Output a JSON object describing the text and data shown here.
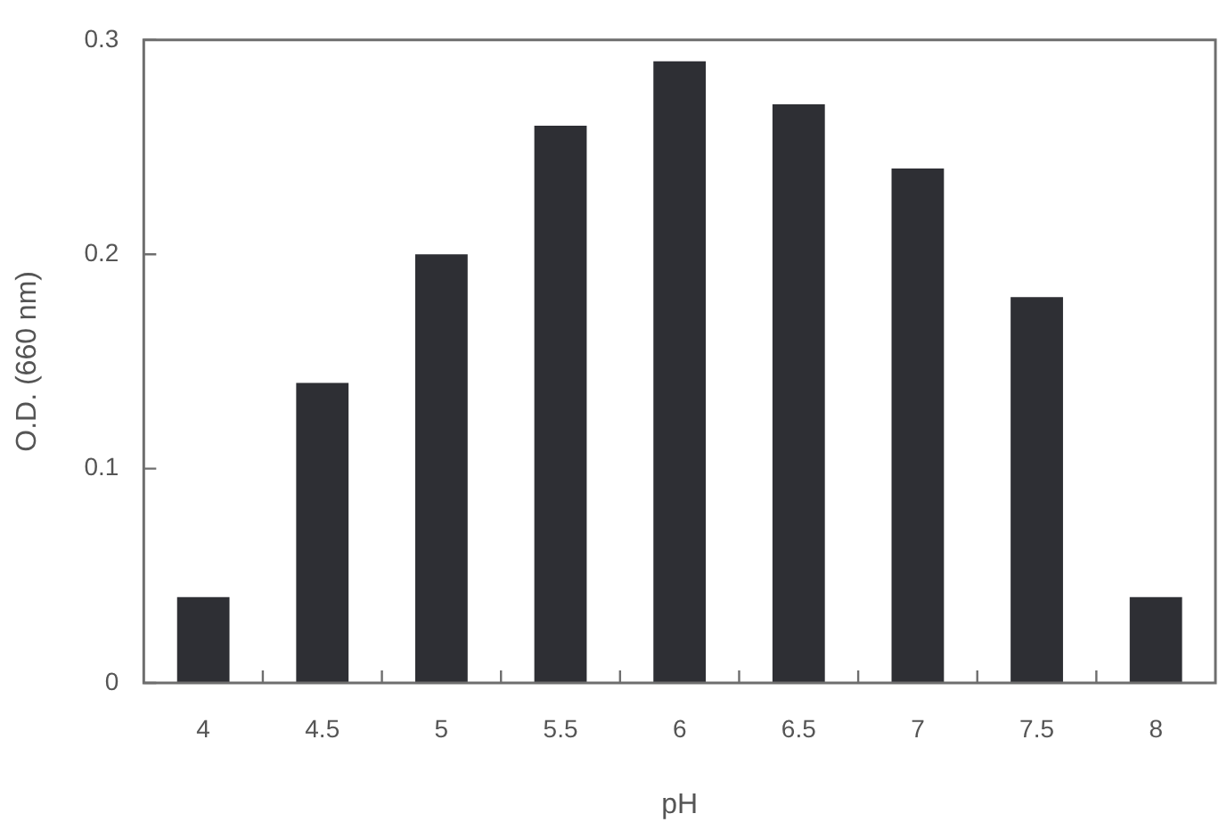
{
  "chart_data": {
    "type": "bar",
    "xlabel": "pH",
    "ylabel": "O.D. (660 nm)",
    "categories": [
      "4",
      "4.5",
      "5",
      "5.5",
      "6",
      "6.5",
      "7",
      "7.5",
      "8"
    ],
    "values": [
      0.04,
      0.14,
      0.2,
      0.26,
      0.29,
      0.27,
      0.24,
      0.18,
      0.04
    ],
    "color": "#2e2f34",
    "ylim": [
      0,
      0.3
    ],
    "yticks": [
      0,
      0.1,
      0.2,
      0.3
    ],
    "grid": false,
    "legend": false
  }
}
